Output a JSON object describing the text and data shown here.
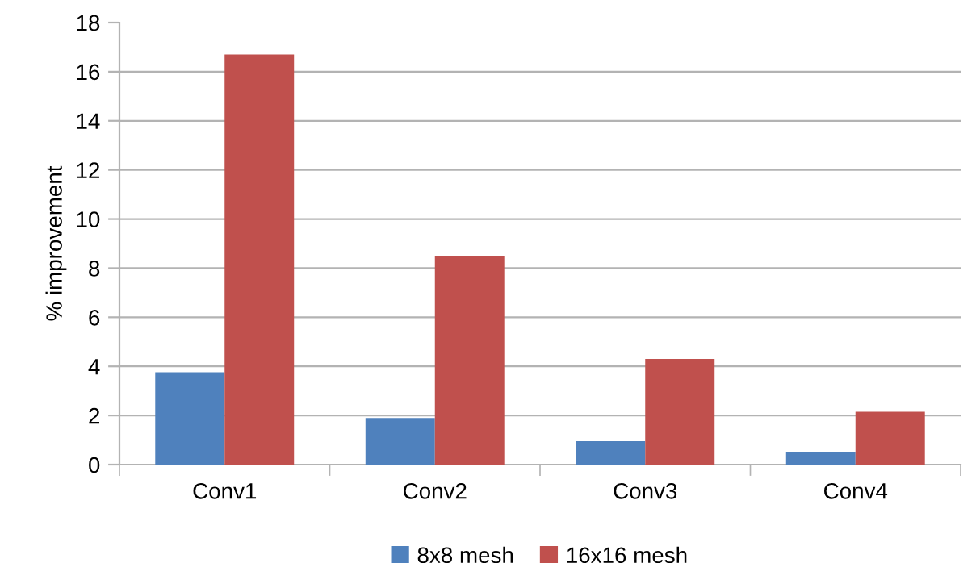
{
  "chart_data": {
    "type": "bar",
    "ylabel": "% improvement",
    "categories": [
      "Conv1",
      "Conv2",
      "Conv3",
      "Conv4"
    ],
    "series": [
      {
        "name": "8x8 mesh",
        "color": "#4f81bd",
        "values": [
          3.76,
          1.9,
          0.95,
          0.49
        ]
      },
      {
        "name": "16x16 mesh",
        "color": "#c0504d",
        "values": [
          16.7,
          8.5,
          4.3,
          2.15
        ]
      }
    ],
    "ylim": [
      0,
      18
    ],
    "yticks": [
      0,
      2,
      4,
      6,
      8,
      10,
      12,
      14,
      16,
      18
    ],
    "grid": "y",
    "legend": "bottom"
  }
}
